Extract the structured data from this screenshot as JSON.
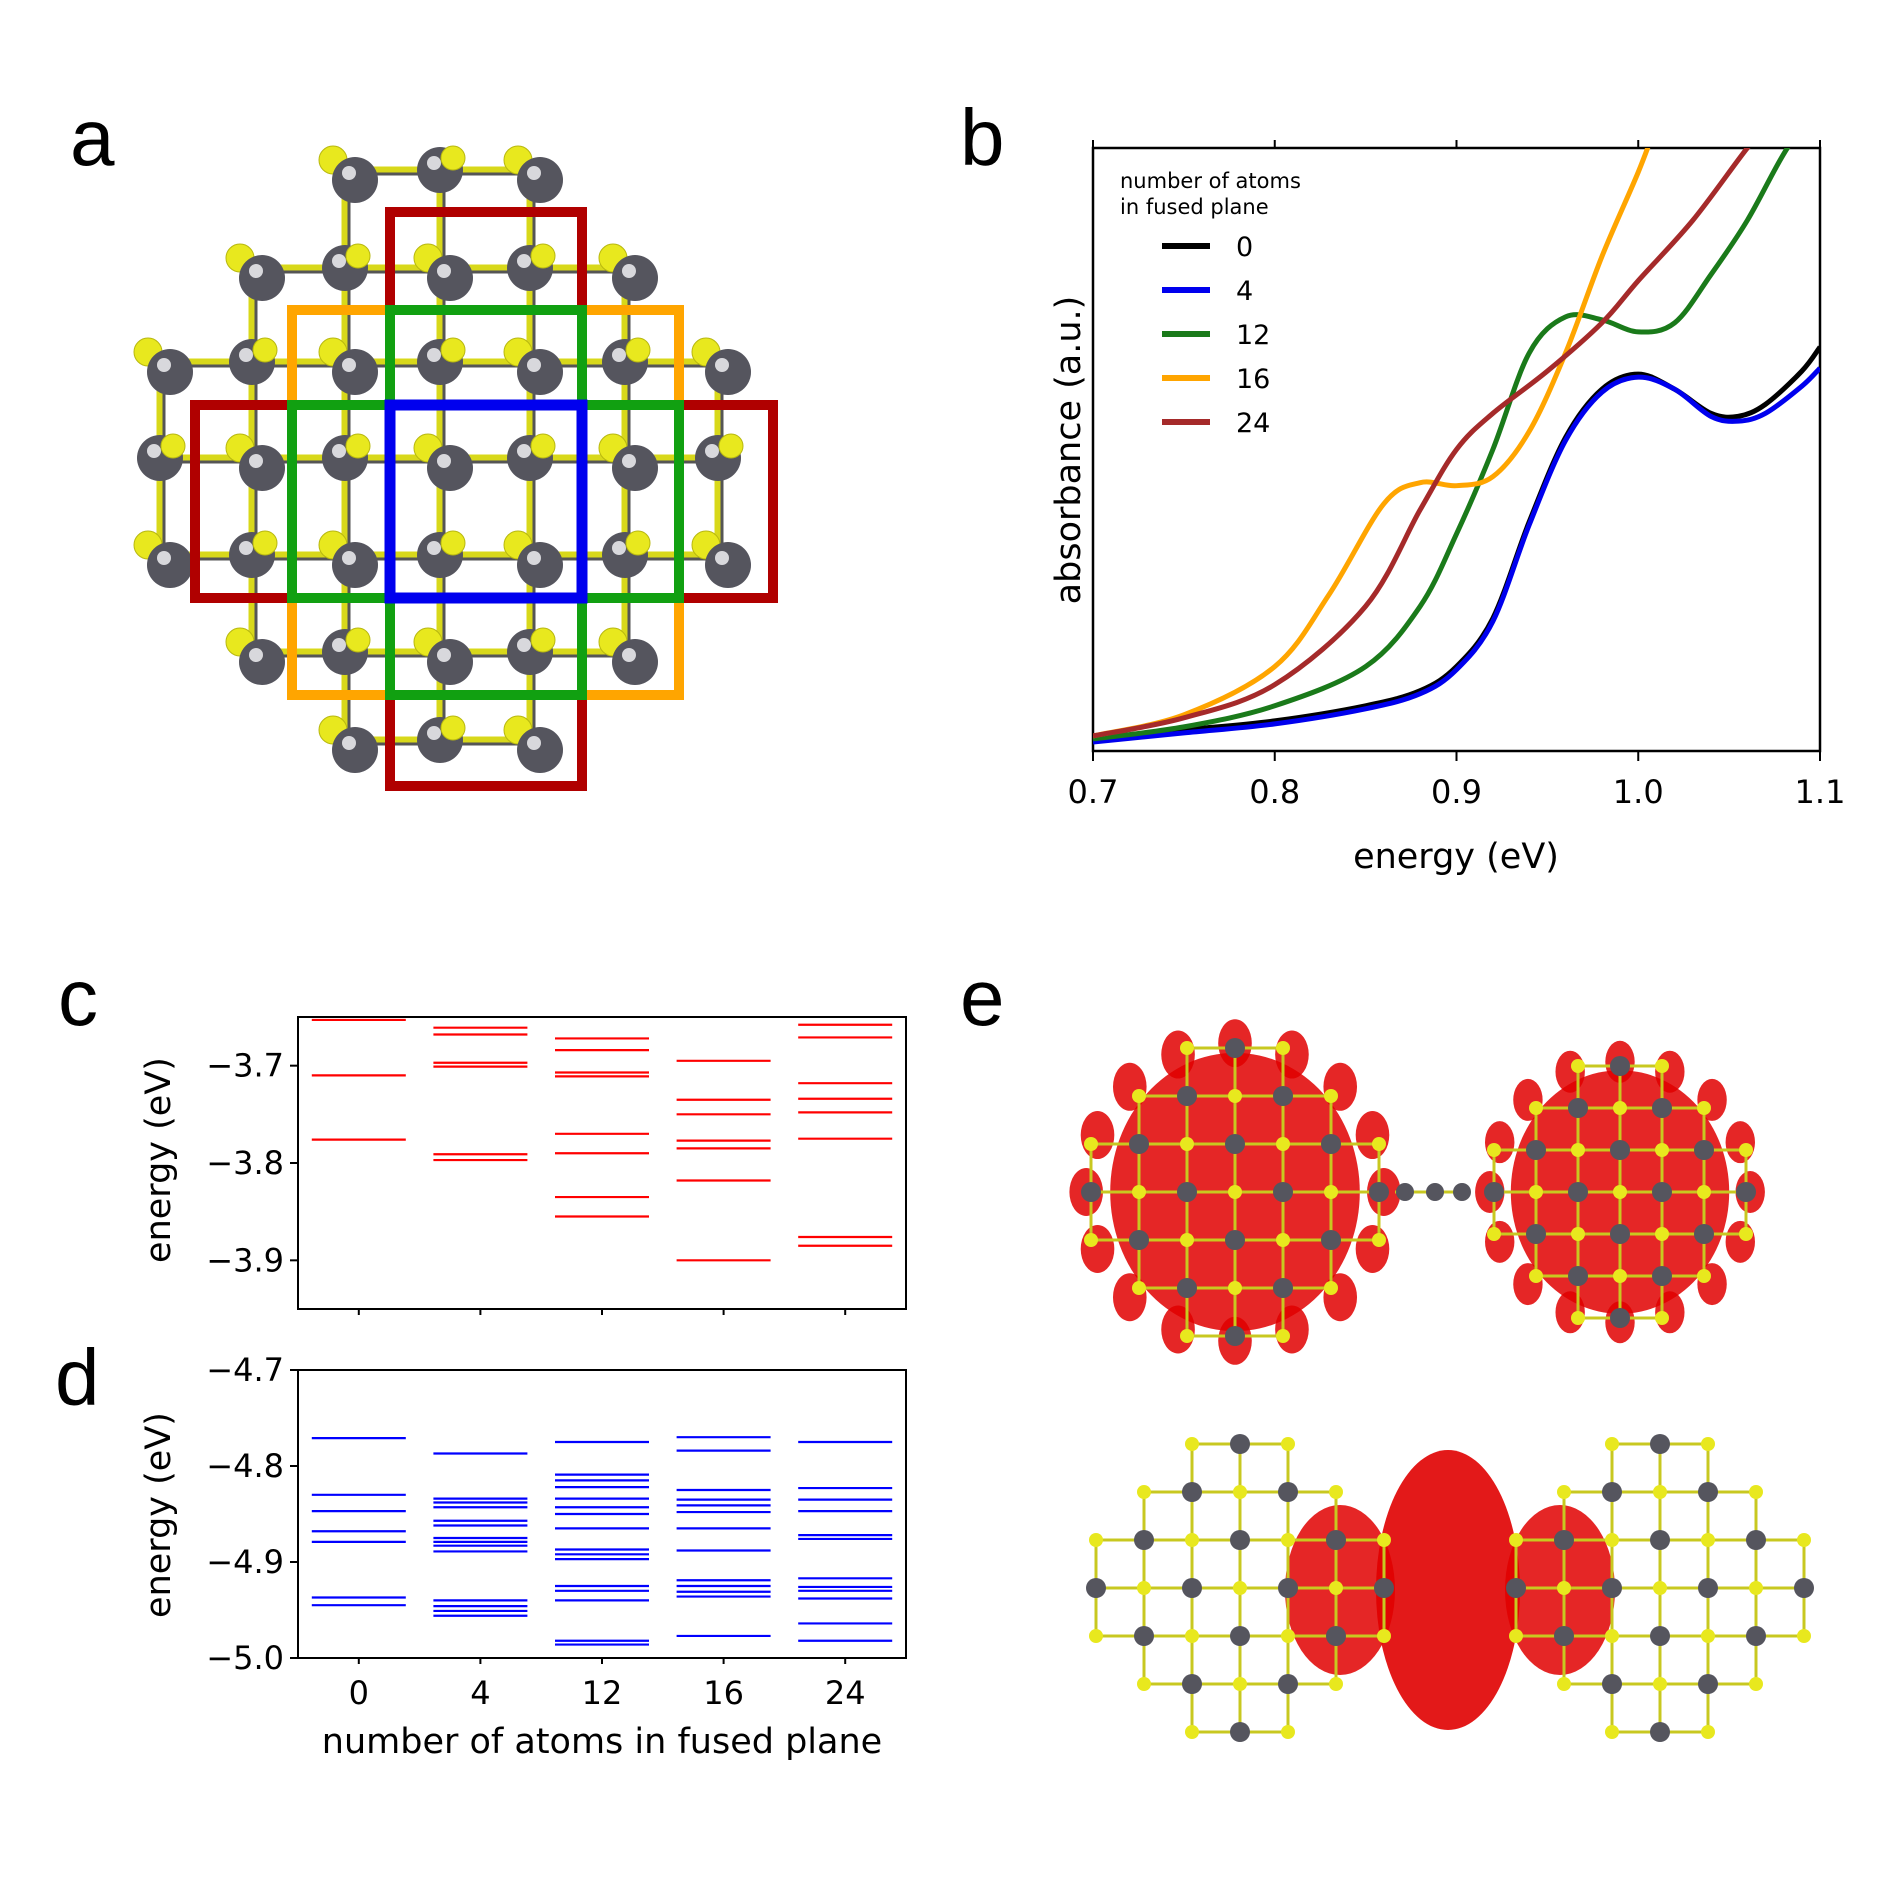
{
  "panel_labels": {
    "a": "a",
    "b": "b",
    "c": "c",
    "d": "d",
    "e": "e"
  },
  "colors": {
    "zero": "#000000",
    "four": "#0000ee",
    "twelve": "#1a7a1a",
    "sixteen": "#ffa500",
    "twentyfour": "#a52a2a",
    "sulfur": "#e8e81e",
    "metal": "#55555e",
    "density": "#e00000",
    "cb_levels": "#ff0000",
    "vb_levels": "#0000ff"
  },
  "chart_data": [
    {
      "id": "b",
      "type": "line",
      "xlabel": "energy (eV)",
      "ylabel": "absorbance (a.u.)",
      "xlim": [
        0.7,
        1.1
      ],
      "ylim": [
        0,
        1
      ],
      "x_ticks": [
        "0.7",
        "0.8",
        "0.9",
        "1.0",
        "1.1"
      ],
      "legend_title": "number of atoms\nin fused plane",
      "legend_title_lines": [
        "number of atoms",
        "in fused plane"
      ],
      "legend_position": "upper-left",
      "series": [
        {
          "name": "0",
          "color": "#000000",
          "points": [
            [
              0.7,
              0.02
            ],
            [
              0.75,
              0.035
            ],
            [
              0.8,
              0.05
            ],
            [
              0.85,
              0.075
            ],
            [
              0.88,
              0.1
            ],
            [
              0.9,
              0.14
            ],
            [
              0.92,
              0.22
            ],
            [
              0.94,
              0.38
            ],
            [
              0.96,
              0.52
            ],
            [
              0.98,
              0.6
            ],
            [
              1.0,
              0.625
            ],
            [
              1.02,
              0.6
            ],
            [
              1.04,
              0.56
            ],
            [
              1.055,
              0.555
            ],
            [
              1.07,
              0.575
            ],
            [
              1.09,
              0.63
            ],
            [
              1.1,
              0.67
            ]
          ]
        },
        {
          "name": "4",
          "color": "#0000ee",
          "points": [
            [
              0.7,
              0.015
            ],
            [
              0.75,
              0.03
            ],
            [
              0.8,
              0.045
            ],
            [
              0.85,
              0.07
            ],
            [
              0.88,
              0.095
            ],
            [
              0.9,
              0.135
            ],
            [
              0.92,
              0.215
            ],
            [
              0.94,
              0.375
            ],
            [
              0.96,
              0.515
            ],
            [
              0.98,
              0.595
            ],
            [
              1.0,
              0.62
            ],
            [
              1.02,
              0.6
            ],
            [
              1.04,
              0.555
            ],
            [
              1.055,
              0.547
            ],
            [
              1.07,
              0.56
            ],
            [
              1.09,
              0.605
            ],
            [
              1.1,
              0.635
            ]
          ]
        },
        {
          "name": "12",
          "color": "#1a7a1a",
          "points": [
            [
              0.7,
              0.02
            ],
            [
              0.75,
              0.04
            ],
            [
              0.8,
              0.075
            ],
            [
              0.85,
              0.14
            ],
            [
              0.88,
              0.24
            ],
            [
              0.9,
              0.36
            ],
            [
              0.92,
              0.5
            ],
            [
              0.94,
              0.66
            ],
            [
              0.96,
              0.72
            ],
            [
              0.98,
              0.715
            ],
            [
              1.0,
              0.695
            ],
            [
              1.02,
              0.71
            ],
            [
              1.04,
              0.79
            ],
            [
              1.06,
              0.88
            ],
            [
              1.08,
              0.99
            ],
            [
              1.1,
              1.08
            ]
          ]
        },
        {
          "name": "16",
          "color": "#ffa500",
          "points": [
            [
              0.7,
              0.025
            ],
            [
              0.75,
              0.06
            ],
            [
              0.8,
              0.14
            ],
            [
              0.83,
              0.26
            ],
            [
              0.86,
              0.41
            ],
            [
              0.88,
              0.445
            ],
            [
              0.9,
              0.44
            ],
            [
              0.92,
              0.455
            ],
            [
              0.94,
              0.53
            ],
            [
              0.96,
              0.66
            ],
            [
              0.98,
              0.82
            ],
            [
              1.0,
              0.96
            ],
            [
              1.01,
              1.04
            ]
          ]
        },
        {
          "name": "24",
          "color": "#a52a2a",
          "points": [
            [
              0.7,
              0.025
            ],
            [
              0.75,
              0.055
            ],
            [
              0.8,
              0.11
            ],
            [
              0.85,
              0.24
            ],
            [
              0.88,
              0.4
            ],
            [
              0.9,
              0.5
            ],
            [
              0.92,
              0.56
            ],
            [
              0.95,
              0.63
            ],
            [
              0.98,
              0.71
            ],
            [
              1.0,
              0.78
            ],
            [
              1.03,
              0.88
            ],
            [
              1.06,
              1.0
            ],
            [
              1.07,
              1.03
            ]
          ]
        }
      ]
    },
    {
      "id": "c",
      "type": "scatter",
      "ylabel": "energy (eV)",
      "ylim": [
        -3.95,
        -3.65
      ],
      "y_ticks": [
        -3.7,
        -3.8,
        -3.9
      ],
      "y_tick_labels": [
        "−3.7",
        "−3.8",
        "−3.9"
      ],
      "categories": [
        "0",
        "4",
        "12",
        "16",
        "24"
      ],
      "levels": [
        [
          -3.653,
          -3.71,
          -3.776
        ],
        [
          -3.661,
          -3.668,
          -3.697,
          -3.701,
          -3.791,
          -3.797
        ],
        [
          -3.672,
          -3.684,
          -3.707,
          -3.711,
          -3.77,
          -3.79,
          -3.835,
          -3.855
        ],
        [
          -3.695,
          -3.735,
          -3.75,
          -3.777,
          -3.785,
          -3.818,
          -3.9
        ],
        [
          -3.658,
          -3.671,
          -3.718,
          -3.734,
          -3.748,
          -3.775,
          -3.876,
          -3.885
        ]
      ]
    },
    {
      "id": "d",
      "type": "scatter",
      "xlabel": "number of atoms in fused plane",
      "ylabel": "energy (eV)",
      "ylim": [
        -5.0,
        -4.7
      ],
      "y_ticks": [
        -4.7,
        -4.8,
        -4.9,
        -5.0
      ],
      "y_tick_labels": [
        "−4.7",
        "−4.8",
        "−4.9",
        "−5.0"
      ],
      "categories": [
        "0",
        "4",
        "12",
        "16",
        "24"
      ],
      "levels": [
        [
          -4.771,
          -4.83,
          -4.847,
          -4.868,
          -4.879,
          -4.937,
          -4.945
        ],
        [
          -4.787,
          -4.834,
          -4.838,
          -4.843,
          -4.857,
          -4.862,
          -4.875,
          -4.879,
          -4.883,
          -4.889,
          -4.94,
          -4.946,
          -4.951,
          -4.956
        ],
        [
          -4.775,
          -4.809,
          -4.815,
          -4.822,
          -4.834,
          -4.843,
          -4.85,
          -4.865,
          -4.887,
          -4.892,
          -4.897,
          -4.925,
          -4.93,
          -4.94,
          -4.982,
          -4.986
        ],
        [
          -4.77,
          -4.784,
          -4.825,
          -4.835,
          -4.841,
          -4.848,
          -4.865,
          -4.888,
          -4.919,
          -4.925,
          -4.931,
          -4.936,
          -4.977
        ],
        [
          -4.775,
          -4.823,
          -4.835,
          -4.847,
          -4.872,
          -4.876,
          -4.917,
          -4.926,
          -4.93,
          -4.938,
          -4.964,
          -4.982
        ]
      ]
    }
  ]
}
